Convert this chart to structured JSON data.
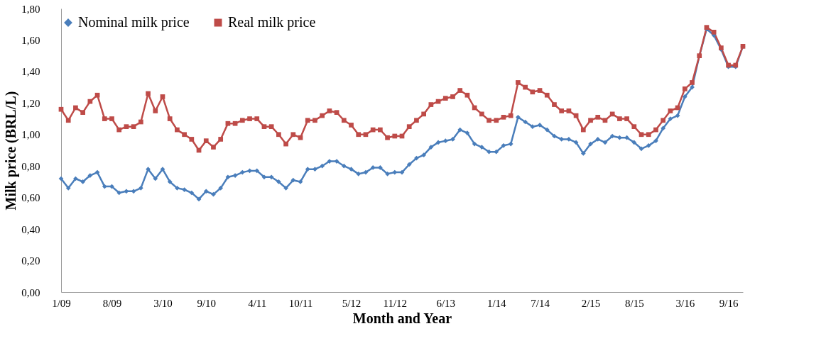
{
  "chart_data": {
    "type": "line",
    "xlabel": "Month and Year",
    "ylabel": "Milk price (BRL/L)",
    "categories": [
      "1/09",
      null,
      null,
      null,
      null,
      null,
      null,
      "8/09",
      null,
      null,
      null,
      null,
      null,
      null,
      "3/10",
      null,
      null,
      null,
      null,
      null,
      "9/10",
      null,
      null,
      null,
      null,
      null,
      null,
      "4/11",
      null,
      null,
      null,
      null,
      null,
      "10/11",
      null,
      null,
      null,
      null,
      null,
      null,
      "5/12",
      null,
      null,
      null,
      null,
      null,
      "11/12",
      null,
      null,
      null,
      null,
      null,
      null,
      "6/13",
      null,
      null,
      null,
      null,
      null,
      null,
      "1/14",
      null,
      null,
      null,
      null,
      null,
      "7/14",
      null,
      null,
      null,
      null,
      null,
      null,
      "2/15",
      null,
      null,
      null,
      null,
      null,
      "8/15",
      null,
      null,
      null,
      null,
      null,
      null,
      "3/16",
      null,
      null,
      null,
      null,
      null,
      "9/16",
      null,
      null
    ],
    "series": [
      {
        "name": "Nominal milk price",
        "color": "#4a7ebb",
        "marker": "diamond",
        "values": [
          0.72,
          0.66,
          0.72,
          0.7,
          0.74,
          0.76,
          0.67,
          0.67,
          0.63,
          0.64,
          0.64,
          0.66,
          0.78,
          0.72,
          0.78,
          0.7,
          0.66,
          0.65,
          0.63,
          0.59,
          0.64,
          0.62,
          0.66,
          0.73,
          0.74,
          0.76,
          0.77,
          0.77,
          0.73,
          0.73,
          0.7,
          0.66,
          0.71,
          0.7,
          0.78,
          0.78,
          0.8,
          0.83,
          0.83,
          0.8,
          0.78,
          0.75,
          0.76,
          0.79,
          0.79,
          0.75,
          0.76,
          0.76,
          0.81,
          0.85,
          0.87,
          0.92,
          0.95,
          0.96,
          0.97,
          1.03,
          1.01,
          0.94,
          0.92,
          0.89,
          0.89,
          0.93,
          0.94,
          1.11,
          1.08,
          1.05,
          1.06,
          1.03,
          0.99,
          0.97,
          0.97,
          0.95,
          0.88,
          0.94,
          0.97,
          0.95,
          0.99,
          0.98,
          0.98,
          0.95,
          0.91,
          0.93,
          0.96,
          1.04,
          1.1,
          1.12,
          1.24,
          1.3,
          1.5,
          1.67,
          1.63,
          1.54,
          1.43,
          1.43,
          1.56
        ]
      },
      {
        "name": "Real milk price",
        "color": "#be4b48",
        "marker": "square",
        "values": [
          1.16,
          1.09,
          1.17,
          1.14,
          1.21,
          1.25,
          1.1,
          1.1,
          1.03,
          1.05,
          1.05,
          1.08,
          1.26,
          1.15,
          1.24,
          1.1,
          1.03,
          1.0,
          0.97,
          0.9,
          0.96,
          0.92,
          0.97,
          1.07,
          1.07,
          1.09,
          1.1,
          1.1,
          1.05,
          1.05,
          1.0,
          0.94,
          1.0,
          0.98,
          1.09,
          1.09,
          1.12,
          1.15,
          1.14,
          1.09,
          1.06,
          1.0,
          1.0,
          1.03,
          1.03,
          0.98,
          0.99,
          0.99,
          1.05,
          1.09,
          1.13,
          1.19,
          1.21,
          1.23,
          1.24,
          1.28,
          1.25,
          1.17,
          1.13,
          1.09,
          1.09,
          1.11,
          1.12,
          1.33,
          1.3,
          1.27,
          1.28,
          1.25,
          1.19,
          1.15,
          1.15,
          1.12,
          1.03,
          1.09,
          1.11,
          1.09,
          1.13,
          1.1,
          1.1,
          1.05,
          1.0,
          1.0,
          1.03,
          1.09,
          1.15,
          1.17,
          1.29,
          1.33,
          1.5,
          1.68,
          1.65,
          1.55,
          1.44,
          1.44,
          1.56
        ]
      }
    ],
    "ylim": [
      0,
      1.8
    ],
    "yticks": [
      {
        "value": 0,
        "label": "0,00"
      },
      {
        "value": 0.2,
        "label": "0,20"
      },
      {
        "value": 0.4,
        "label": "0,40"
      },
      {
        "value": 0.6,
        "label": "0,60"
      },
      {
        "value": 0.8,
        "label": "0,80"
      },
      {
        "value": 1.0,
        "label": "1,00"
      },
      {
        "value": 1.2,
        "label": "1,20"
      },
      {
        "value": 1.4,
        "label": "1,40"
      },
      {
        "value": 1.6,
        "label": "1,60"
      },
      {
        "value": 1.8,
        "label": "1,80"
      }
    ],
    "grid": false,
    "legend": "top",
    "line_style": "solid"
  }
}
